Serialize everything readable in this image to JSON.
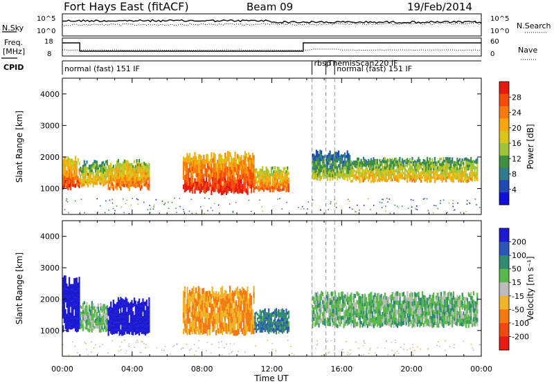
{
  "header": {
    "station": "Fort Hays East (fitACF)",
    "beam": "Beam 09",
    "date": "19/Feb/2014"
  },
  "top_strips": {
    "nsky": {
      "label": "N.Sky",
      "ticks": [
        "10^5",
        "10^0"
      ]
    },
    "nsearch": {
      "label": "N.Search",
      "ticks": [
        "10^5",
        "10^0"
      ]
    },
    "freq": {
      "label_line1": "Freq.",
      "label_line2": "[MHz]",
      "ticks": [
        "18",
        "8"
      ]
    },
    "nave": {
      "label": "Nave",
      "ticks": [
        "60",
        "0"
      ]
    },
    "cpid": {
      "label": "CPID",
      "programs": [
        {
          "name": "normal (fast) 151 IF",
          "start_h": 0.0
        },
        {
          "name": "rbsp",
          "start_h": 14.3
        },
        {
          "name": "ThemisScan220 IF",
          "start_h": 15.1
        },
        {
          "name": "normal (fast) 151 IF",
          "start_h": 15.6
        }
      ]
    }
  },
  "axes": {
    "ylabel": "Slant Range [km]",
    "xlabel": "Time UT",
    "x_ticks": [
      "00:00",
      "04:00",
      "08:00",
      "12:00",
      "16:00",
      "20:00",
      "00:00"
    ],
    "y_ticks": [
      "1000",
      "2000",
      "3000",
      "4000"
    ]
  },
  "colorbars": {
    "power": {
      "label": "Power [dB]",
      "ticks": [
        "28",
        "24",
        "20",
        "16",
        "12",
        "8",
        "4"
      ],
      "colors": [
        "#e8190f",
        "#f54a0c",
        "#f77b0c",
        "#f9a50d",
        "#d9c51a",
        "#9cc33a",
        "#3f8f3c",
        "#2f7b8c",
        "#1f4ab4",
        "#1010d8"
      ]
    },
    "velocity": {
      "label": "Velocity [m s⁻¹]",
      "ticks": [
        "200",
        "100",
        "50",
        "15",
        "-15",
        "-50",
        "-100",
        "-200"
      ],
      "colors": [
        "#1d1ad2",
        "#2c55b8",
        "#2f8a72",
        "#5ab84a",
        "#bcbcbc",
        "#f0b428",
        "#f37a12",
        "#f04a12",
        "#e81b12"
      ]
    }
  },
  "chart_data": [
    {
      "type": "heatmap",
      "name": "power",
      "xlim": [
        0,
        24
      ],
      "ylim": [
        180,
        4500
      ],
      "series": [
        {
          "t_start": 0.0,
          "t_end": 1.0,
          "r_low": 1000,
          "r_high": 1900,
          "value": 20
        },
        {
          "t_start": 1.0,
          "t_end": 2.6,
          "r_low": 1100,
          "r_high": 1800,
          "value": 14
        },
        {
          "t_start": 2.6,
          "t_end": 5.0,
          "r_low": 1000,
          "r_high": 1800,
          "value": 18
        },
        {
          "t_start": 6.9,
          "t_end": 8.5,
          "r_low": 900,
          "r_high": 2000,
          "value": 22
        },
        {
          "t_start": 8.5,
          "t_end": 11.0,
          "r_low": 850,
          "r_high": 2000,
          "value": 22
        },
        {
          "t_start": 11.0,
          "t_end": 13.0,
          "r_low": 950,
          "r_high": 1600,
          "value": 18
        },
        {
          "t_start": 14.3,
          "t_end": 16.5,
          "r_low": 1300,
          "r_high": 2100,
          "value": 10
        },
        {
          "t_start": 16.5,
          "t_end": 23.8,
          "r_low": 1250,
          "r_high": 1900,
          "value": 14
        }
      ]
    },
    {
      "type": "heatmap",
      "name": "velocity",
      "xlim": [
        0,
        24
      ],
      "ylim": [
        180,
        4500
      ],
      "series": [
        {
          "t_start": 0.0,
          "t_end": 1.0,
          "r_low": 1000,
          "r_high": 2500,
          "value": 150
        },
        {
          "t_start": 1.0,
          "t_end": 2.6,
          "r_low": 1000,
          "r_high": 1800,
          "value": 0
        },
        {
          "t_start": 2.6,
          "t_end": 5.0,
          "r_low": 900,
          "r_high": 1900,
          "value": 200
        },
        {
          "t_start": 6.9,
          "t_end": 11.0,
          "r_low": 900,
          "r_high": 2200,
          "value": -100
        },
        {
          "t_start": 11.0,
          "t_end": 13.0,
          "r_low": 950,
          "r_high": 1600,
          "value": 40
        },
        {
          "t_start": 14.3,
          "t_end": 23.8,
          "r_low": 1150,
          "r_high": 2100,
          "value": 0
        }
      ]
    }
  ]
}
